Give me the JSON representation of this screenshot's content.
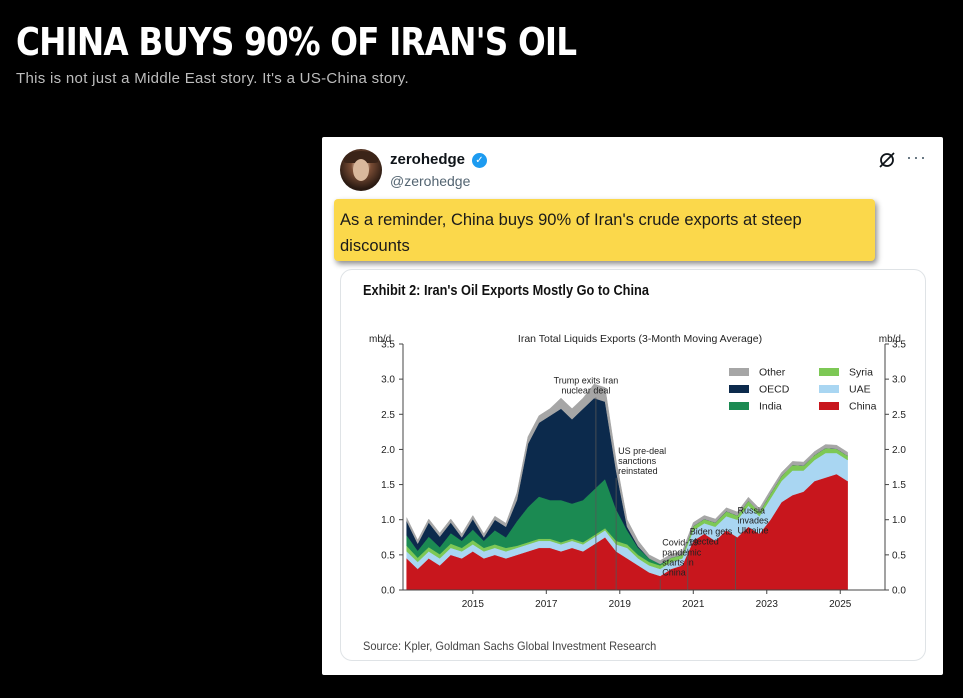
{
  "page": {
    "headline": "CHINA BUYS 90% OF IRAN'S OIL",
    "subheadline": "This is not just a Middle East story. It's a US-China story."
  },
  "tweet": {
    "author_name": "zerohedge",
    "handle": "@zerohedge",
    "verified_mark": "✓",
    "text": "As a reminder, China buys 90% of Iran's crude exports at steep discounts",
    "more_label": "···",
    "icons": [
      "avatar",
      "verified-badge-icon",
      "grok-icon",
      "more-icon"
    ],
    "highlight_color": "#fbd84b"
  },
  "exhibit": {
    "title": "Exhibit 2: Iran's Oil Exports Mostly Go to China",
    "source": "Source: Kpler, Goldman Sachs Global Investment Research"
  },
  "chart_data": {
    "type": "area",
    "stacked": true,
    "title": "Iran Total Liquids Exports (3-Month Moving Average)",
    "ylabel_left": "mb/d",
    "ylabel_right": "mb/d",
    "ylim": [
      0,
      3.5
    ],
    "xlim": [
      2013.1,
      2026.0
    ],
    "y_ticks": [
      "0.0",
      "0.5",
      "1.0",
      "1.5",
      "2.0",
      "2.5",
      "3.0",
      "3.5"
    ],
    "x_ticks": [
      "2015",
      "2017",
      "2019",
      "2021",
      "2023",
      "2025"
    ],
    "x": [
      2013.2,
      2013.5,
      2013.8,
      2014.1,
      2014.4,
      2014.7,
      2015.0,
      2015.3,
      2015.6,
      2015.9,
      2016.2,
      2016.5,
      2016.8,
      2017.1,
      2017.4,
      2017.7,
      2018.0,
      2018.3,
      2018.6,
      2018.9,
      2019.2,
      2019.5,
      2019.8,
      2020.1,
      2020.4,
      2020.7,
      2021.0,
      2021.3,
      2021.6,
      2021.9,
      2022.2,
      2022.5,
      2022.8,
      2023.1,
      2023.4,
      2023.7,
      2024.0,
      2024.3,
      2024.6,
      2024.9,
      2025.2
    ],
    "series": [
      {
        "name": "China",
        "color": "#c8161d",
        "values": [
          0.45,
          0.3,
          0.45,
          0.35,
          0.5,
          0.45,
          0.55,
          0.45,
          0.5,
          0.45,
          0.5,
          0.55,
          0.6,
          0.6,
          0.55,
          0.6,
          0.55,
          0.65,
          0.75,
          0.55,
          0.45,
          0.35,
          0.25,
          0.2,
          0.3,
          0.35,
          0.7,
          0.8,
          0.7,
          0.85,
          0.75,
          0.9,
          0.8,
          1.0,
          1.25,
          1.35,
          1.4,
          1.55,
          1.6,
          1.65,
          1.55
        ]
      },
      {
        "name": "UAE",
        "color": "#a9d6f2",
        "values": [
          0.1,
          0.1,
          0.1,
          0.1,
          0.1,
          0.1,
          0.1,
          0.1,
          0.1,
          0.1,
          0.1,
          0.1,
          0.1,
          0.1,
          0.1,
          0.1,
          0.1,
          0.1,
          0.1,
          0.1,
          0.15,
          0.1,
          0.1,
          0.1,
          0.1,
          0.1,
          0.15,
          0.15,
          0.2,
          0.2,
          0.25,
          0.3,
          0.25,
          0.3,
          0.3,
          0.35,
          0.3,
          0.3,
          0.35,
          0.3,
          0.3
        ]
      },
      {
        "name": "Syria",
        "color": "#7dc855",
        "values": [
          0.08,
          0.06,
          0.06,
          0.06,
          0.06,
          0.05,
          0.06,
          0.05,
          0.05,
          0.05,
          0.03,
          0.03,
          0.03,
          0.03,
          0.03,
          0.03,
          0.03,
          0.03,
          0.03,
          0.05,
          0.05,
          0.05,
          0.05,
          0.05,
          0.06,
          0.05,
          0.06,
          0.06,
          0.06,
          0.07,
          0.06,
          0.07,
          0.06,
          0.07,
          0.07,
          0.08,
          0.07,
          0.07,
          0.07,
          0.06,
          0.06
        ]
      },
      {
        "name": "India",
        "color": "#1b8a52",
        "values": [
          0.15,
          0.1,
          0.15,
          0.1,
          0.15,
          0.1,
          0.15,
          0.1,
          0.2,
          0.15,
          0.35,
          0.5,
          0.6,
          0.55,
          0.6,
          0.5,
          0.6,
          0.65,
          0.7,
          0.45,
          0.2,
          0.1,
          0.05,
          0.02,
          0,
          0,
          0,
          0,
          0,
          0,
          0,
          0,
          0,
          0,
          0,
          0,
          0,
          0,
          0,
          0,
          0
        ]
      },
      {
        "name": "OECD",
        "color": "#0c2a4c",
        "values": [
          0.2,
          0.1,
          0.2,
          0.15,
          0.15,
          0.05,
          0.15,
          0.05,
          0.15,
          0.15,
          0.3,
          0.9,
          1.05,
          1.2,
          1.3,
          1.2,
          1.3,
          1.3,
          1.1,
          0.55,
          0.05,
          0.02,
          0,
          0,
          0,
          0,
          0,
          0,
          0,
          0,
          0,
          0,
          0,
          0,
          0,
          0,
          0,
          0,
          0,
          0,
          0
        ]
      },
      {
        "name": "Other",
        "color": "#a6a6a6",
        "values": [
          0.05,
          0.05,
          0.05,
          0.05,
          0.05,
          0.05,
          0.05,
          0.05,
          0.05,
          0.05,
          0.1,
          0.1,
          0.1,
          0.1,
          0.15,
          0.15,
          0.15,
          0.2,
          0.2,
          0.15,
          0.1,
          0.08,
          0.05,
          0.05,
          0.05,
          0.05,
          0.05,
          0.05,
          0.05,
          0.05,
          0.05,
          0.05,
          0.05,
          0.05,
          0.05,
          0.05,
          0.05,
          0.05,
          0.05,
          0.05,
          0.05
        ]
      }
    ],
    "legend_order": [
      "Other",
      "Syria",
      "OECD",
      "UAE",
      "India",
      "China"
    ],
    "legend_placement": "top-right",
    "annotations": [
      {
        "lines": [
          "Trump exits Iran",
          "nuclear deal"
        ],
        "x": 2018.35,
        "y_top": 3.05
      },
      {
        "lines": [
          "US pre-deal",
          "sanctions",
          "reinstated"
        ],
        "x": 2018.9,
        "y_top": 2.05
      },
      {
        "lines": [
          "Covid-19",
          "pandemic",
          "starts in",
          "China"
        ],
        "x": 2020.1,
        "y_top": 0.75
      },
      {
        "lines": [
          "Biden gets",
          "elected"
        ],
        "x": 2020.85,
        "y_top": 0.9
      },
      {
        "lines": [
          "Russia",
          "invades",
          "Ukraine"
        ],
        "x": 2022.15,
        "y_top": 1.2
      }
    ],
    "grid": false
  }
}
